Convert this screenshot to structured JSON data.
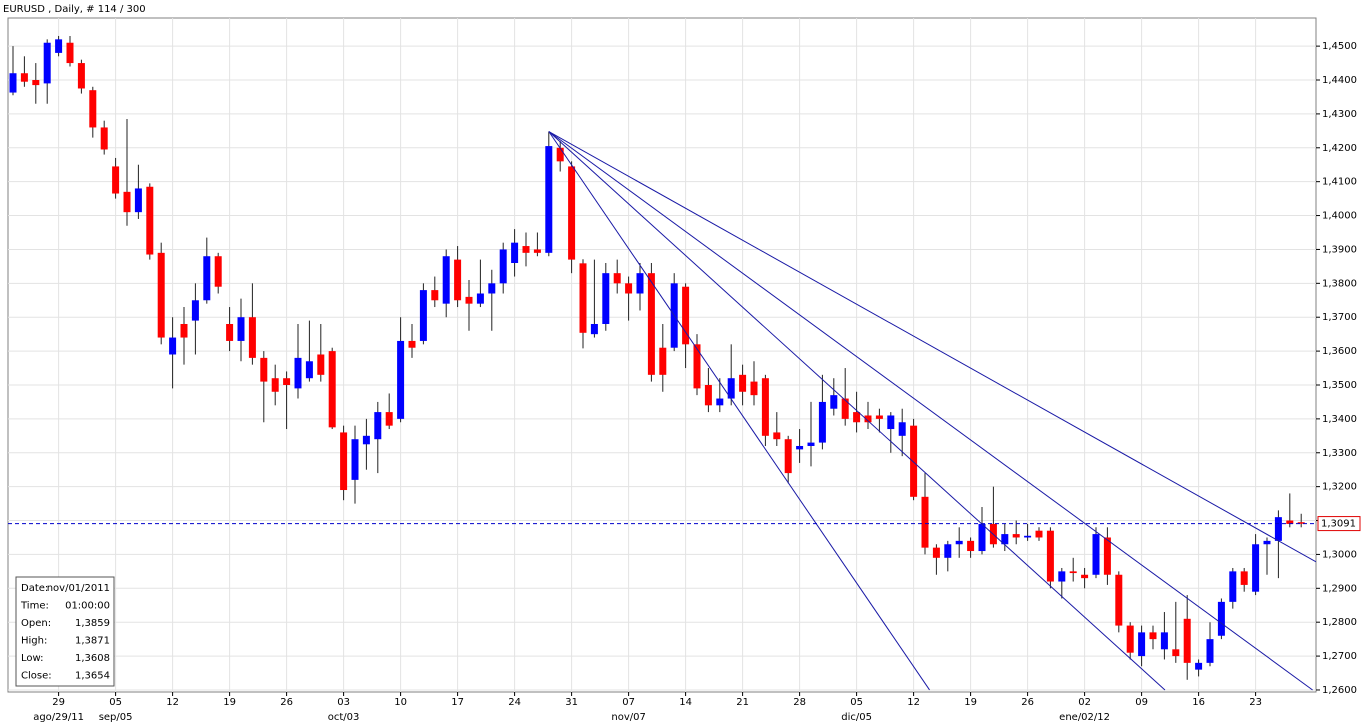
{
  "chart_data": {
    "type": "candlestick",
    "title": "EURUSD , Daily, # 114 / 300",
    "up_color": "#0000ff",
    "down_color": "#ff0000",
    "trendline_color": "#1a1aa6",
    "grid": true,
    "categories": [
      null,
      null,
      null,
      null,
      "29",
      null,
      null,
      null,
      null,
      "05",
      null,
      null,
      null,
      null,
      "12",
      null,
      null,
      null,
      null,
      "19",
      null,
      null,
      null,
      null,
      "26",
      null,
      null,
      null,
      null,
      "03",
      null,
      null,
      null,
      null,
      "10",
      null,
      null,
      null,
      null,
      "17",
      null,
      null,
      null,
      null,
      "24",
      null,
      null,
      null,
      null,
      "31",
      null,
      null,
      null,
      null,
      "07",
      null,
      null,
      null,
      null,
      "14",
      null,
      null,
      null,
      null,
      "21",
      null,
      null,
      null,
      null,
      "28",
      null,
      null,
      null,
      null,
      "05",
      null,
      null,
      null,
      null,
      "12",
      null,
      null,
      null,
      null,
      "19",
      null,
      null,
      null,
      null,
      "26",
      null,
      null,
      null,
      null,
      "02",
      null,
      null,
      null,
      null,
      "09",
      null,
      null,
      null,
      null,
      "16",
      null,
      null,
      null,
      null,
      "23",
      null,
      null,
      null,
      null
    ],
    "category_groups": [
      null,
      null,
      null,
      null,
      "ago/29/11",
      null,
      null,
      null,
      null,
      "sep/05",
      null,
      null,
      null,
      null,
      null,
      null,
      null,
      null,
      null,
      null,
      null,
      null,
      null,
      null,
      null,
      null,
      null,
      null,
      null,
      "oct/03",
      null,
      null,
      null,
      null,
      null,
      null,
      null,
      null,
      null,
      null,
      null,
      null,
      null,
      null,
      null,
      null,
      null,
      null,
      null,
      null,
      null,
      null,
      null,
      null,
      "nov/07",
      null,
      null,
      null,
      null,
      null,
      null,
      null,
      null,
      null,
      null,
      null,
      null,
      null,
      null,
      null,
      null,
      null,
      null,
      null,
      "dic/05",
      null,
      null,
      null,
      null,
      null,
      null,
      null,
      null,
      null,
      null,
      null,
      null,
      null,
      null,
      null,
      null,
      null,
      null,
      null,
      "ene/02/12",
      null,
      null,
      null,
      null,
      null,
      null,
      null,
      null,
      null,
      null,
      null,
      null,
      null,
      null,
      null,
      null,
      null,
      null,
      null
    ],
    "open": [
      1.4363,
      1.442,
      1.44,
      1.439,
      1.448,
      1.451,
      1.445,
      1.437,
      1.426,
      1.4145,
      1.407,
      1.401,
      1.4085,
      1.389,
      1.359,
      1.368,
      1.369,
      1.375,
      1.388,
      1.368,
      1.363,
      1.37,
      1.358,
      1.352,
      1.352,
      1.349,
      1.352,
      1.359,
      1.36,
      1.336,
      1.322,
      1.3325,
      1.334,
      1.342,
      1.34,
      1.363,
      1.363,
      1.378,
      1.374,
      1.387,
      1.376,
      1.374,
      1.377,
      1.38,
      1.386,
      1.391,
      1.39,
      1.389,
      1.42,
      1.4145,
      1.3859,
      1.365,
      1.368,
      1.383,
      1.38,
      1.377,
      1.383,
      1.361,
      1.361,
      1.379,
      1.362,
      1.35,
      1.344,
      1.346,
      1.353,
      1.351,
      1.352,
      1.336,
      1.334,
      1.331,
      1.332,
      1.333,
      1.343,
      1.346,
      1.342,
      1.341,
      1.341,
      1.337,
      1.335,
      1.338,
      1.317,
      1.302,
      1.299,
      1.303,
      1.304,
      1.301,
      1.309,
      1.303,
      1.306,
      1.305,
      1.307,
      1.307,
      1.292,
      1.295,
      1.294,
      1.294,
      1.305,
      1.294,
      1.279,
      1.27,
      1.277,
      1.272,
      1.272,
      1.281,
      1.266,
      1.268,
      1.276,
      1.286,
      1.295,
      1.289,
      1.303,
      1.304,
      1.31,
      1.3095
    ],
    "high": [
      1.45,
      1.447,
      1.445,
      1.452,
      1.453,
      1.453,
      1.446,
      1.438,
      1.428,
      1.417,
      1.4285,
      1.415,
      1.4095,
      1.392,
      1.37,
      1.373,
      1.38,
      1.3935,
      1.389,
      1.373,
      1.3755,
      1.38,
      1.36,
      1.356,
      1.354,
      1.368,
      1.369,
      1.368,
      1.361,
      1.338,
      1.338,
      1.34,
      1.345,
      1.3475,
      1.37,
      1.368,
      1.38,
      1.382,
      1.39,
      1.391,
      1.381,
      1.387,
      1.384,
      1.392,
      1.396,
      1.395,
      1.395,
      1.4248,
      1.422,
      1.416,
      1.3871,
      1.387,
      1.386,
      1.387,
      1.382,
      1.386,
      1.386,
      1.368,
      1.383,
      1.38,
      1.365,
      1.355,
      1.352,
      1.362,
      1.356,
      1.357,
      1.353,
      1.342,
      1.335,
      1.337,
      1.345,
      1.353,
      1.352,
      1.355,
      1.348,
      1.345,
      1.343,
      1.342,
      1.343,
      1.34,
      1.324,
      1.303,
      1.304,
      1.308,
      1.305,
      1.314,
      1.32,
      1.309,
      1.31,
      1.309,
      1.308,
      1.308,
      1.296,
      1.299,
      1.296,
      1.308,
      1.308,
      1.295,
      1.28,
      1.279,
      1.279,
      1.283,
      1.286,
      1.288,
      1.269,
      1.28,
      1.287,
      1.296,
      1.296,
      1.306,
      1.305,
      1.313,
      1.318,
      1.312
    ],
    "low": [
      1.4355,
      1.438,
      1.433,
      1.433,
      1.447,
      1.444,
      1.436,
      1.423,
      1.418,
      1.405,
      1.397,
      1.399,
      1.387,
      1.362,
      1.349,
      1.356,
      1.359,
      1.374,
      1.377,
      1.36,
      1.357,
      1.356,
      1.339,
      1.344,
      1.337,
      1.346,
      1.351,
      1.351,
      1.337,
      1.316,
      1.315,
      1.325,
      1.324,
      1.337,
      1.339,
      1.358,
      1.362,
      1.373,
      1.37,
      1.373,
      1.366,
      1.373,
      1.366,
      1.377,
      1.382,
      1.385,
      1.388,
      1.388,
      1.413,
      1.383,
      1.3608,
      1.364,
      1.366,
      1.377,
      1.369,
      1.372,
      1.351,
      1.348,
      1.36,
      1.355,
      1.347,
      1.342,
      1.342,
      1.344,
      1.344,
      1.344,
      1.332,
      1.332,
      1.321,
      1.327,
      1.326,
      1.331,
      1.341,
      1.338,
      1.336,
      1.337,
      1.336,
      1.33,
      1.329,
      1.316,
      1.3,
      1.294,
      1.295,
      1.299,
      1.299,
      1.3,
      1.302,
      1.301,
      1.303,
      1.304,
      1.304,
      1.29,
      1.287,
      1.292,
      1.29,
      1.293,
      1.291,
      1.277,
      1.269,
      1.267,
      1.272,
      1.269,
      1.268,
      1.263,
      1.264,
      1.267,
      1.275,
      1.284,
      1.289,
      1.288,
      1.294,
      1.293,
      1.308,
      1.308
    ],
    "close": [
      1.442,
      1.4395,
      1.4385,
      1.451,
      1.452,
      1.445,
      1.4375,
      1.426,
      1.4195,
      1.4065,
      1.401,
      1.408,
      1.3885,
      1.364,
      1.364,
      1.364,
      1.375,
      1.388,
      1.379,
      1.363,
      1.37,
      1.358,
      1.351,
      1.348,
      1.35,
      1.358,
      1.357,
      1.353,
      1.3375,
      1.319,
      1.334,
      1.335,
      1.342,
      1.338,
      1.363,
      1.361,
      1.378,
      1.375,
      1.388,
      1.375,
      1.374,
      1.377,
      1.38,
      1.39,
      1.392,
      1.389,
      1.389,
      1.4205,
      1.416,
      1.387,
      1.3654,
      1.368,
      1.383,
      1.38,
      1.377,
      1.383,
      1.353,
      1.353,
      1.38,
      1.362,
      1.349,
      1.344,
      1.346,
      1.352,
      1.348,
      1.347,
      1.335,
      1.334,
      1.324,
      1.332,
      1.333,
      1.345,
      1.347,
      1.34,
      1.339,
      1.339,
      1.34,
      1.341,
      1.339,
      1.317,
      1.302,
      1.299,
      1.303,
      1.304,
      1.301,
      1.309,
      1.303,
      1.306,
      1.305,
      1.3055,
      1.305,
      1.292,
      1.295,
      1.2945,
      1.293,
      1.306,
      1.294,
      1.279,
      1.271,
      1.277,
      1.275,
      1.277,
      1.27,
      1.268,
      1.268,
      1.275,
      1.286,
      1.295,
      1.291,
      1.303,
      1.304,
      1.311,
      1.309,
      1.3091
    ],
    "ylim": [
      1.2594,
      1.4583
    ],
    "yticks": [
      {
        "value": 1.26,
        "label": "1,2600"
      },
      {
        "value": 1.27,
        "label": "1,2700"
      },
      {
        "value": 1.28,
        "label": "1,2800"
      },
      {
        "value": 1.29,
        "label": "1,2900"
      },
      {
        "value": 1.3,
        "label": "1,3000"
      },
      {
        "value": 1.31,
        "label": "1,3100"
      },
      {
        "value": 1.32,
        "label": "1,3200"
      },
      {
        "value": 1.33,
        "label": "1,3300"
      },
      {
        "value": 1.34,
        "label": "1,3400"
      },
      {
        "value": 1.35,
        "label": "1,3500"
      },
      {
        "value": 1.36,
        "label": "1,3600"
      },
      {
        "value": 1.37,
        "label": "1,3700"
      },
      {
        "value": 1.38,
        "label": "1,3800"
      },
      {
        "value": 1.39,
        "label": "1,3900"
      },
      {
        "value": 1.4,
        "label": "1,4000"
      },
      {
        "value": 1.41,
        "label": "1,4100"
      },
      {
        "value": 1.42,
        "label": "1,4200"
      },
      {
        "value": 1.43,
        "label": "1,4300"
      },
      {
        "value": 1.44,
        "label": "1,4400"
      },
      {
        "value": 1.45,
        "label": "1,4500"
      }
    ],
    "current_price": {
      "value": 1.3091,
      "label": "1,3091"
    },
    "trendlines": [
      {
        "x": [
          47,
          80.4
        ],
        "y": [
          1.4248,
          1.26
        ]
      },
      {
        "x": [
          47,
          101.05
        ],
        "y": [
          1.4248,
          1.26
        ]
      },
      {
        "x": [
          47,
          114
        ],
        "y": [
          1.4248,
          1.26
        ]
      },
      {
        "x": [
          47,
          114.3
        ],
        "y": [
          1.4248,
          1.2978
        ]
      }
    ],
    "info_box": [
      [
        "Date:",
        "nov/01/2011"
      ],
      [
        "Time:",
        "01:00:00"
      ],
      [
        "Open:",
        "1,3859"
      ],
      [
        "High:",
        "1,3871"
      ],
      [
        "Low:",
        "1,3608"
      ],
      [
        "Close:",
        "1,3654"
      ]
    ]
  }
}
